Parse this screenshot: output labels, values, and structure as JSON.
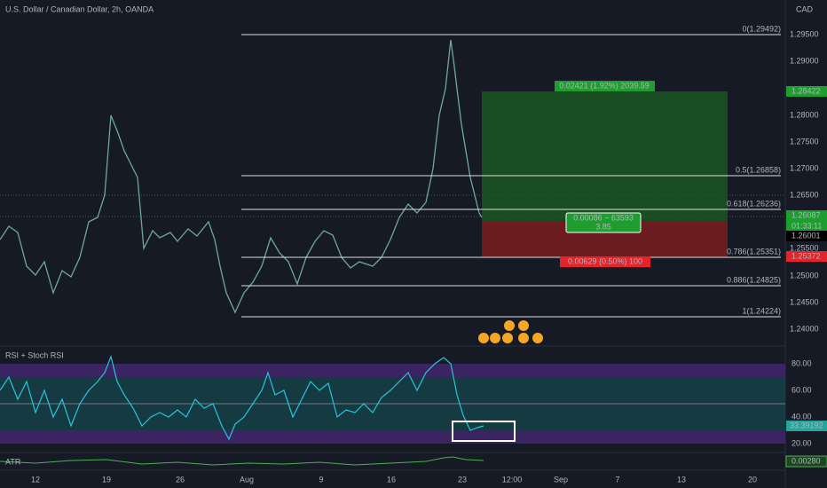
{
  "header": {
    "symbol": "U.S. Dollar / Canadian Dollar, 2h, OANDA",
    "currency": "CAD"
  },
  "price_axis": {
    "ticks": [
      "1.29500",
      "1.29000",
      "1.28000",
      "1.27500",
      "1.27000",
      "1.26500",
      "1.25500",
      "1.25000",
      "1.24500",
      "1.24000"
    ]
  },
  "price_labels": {
    "target": "1.28422",
    "current": "1.26087",
    "countdown": "01:33:11",
    "last": "1.26001",
    "stop": "1.25372"
  },
  "fib_levels": [
    "0(1.29492)",
    "0.5(1.26858)",
    "0.618(1.26236)",
    "0.786(1.25351)",
    "0.886(1.24825)",
    "1(1.24224)"
  ],
  "position": {
    "target": "0.02421 (1.92%) 2039.59",
    "center": [
      "0.00086 ~ 63593",
      "3.85"
    ],
    "stop": "0.00629 (0.50%) 100"
  },
  "rsi": {
    "title": "RSI + Stoch RSI",
    "ticks": [
      "80.00",
      "60.00",
      "40.00",
      "20.00"
    ],
    "value": "33.39192"
  },
  "atr": {
    "title": "ATR",
    "value": "0.00280"
  },
  "time_axis": [
    "12",
    "19",
    "26",
    "Aug",
    "9",
    "16",
    "23",
    "12:00",
    "Sep",
    "7",
    "13",
    "20"
  ]
}
